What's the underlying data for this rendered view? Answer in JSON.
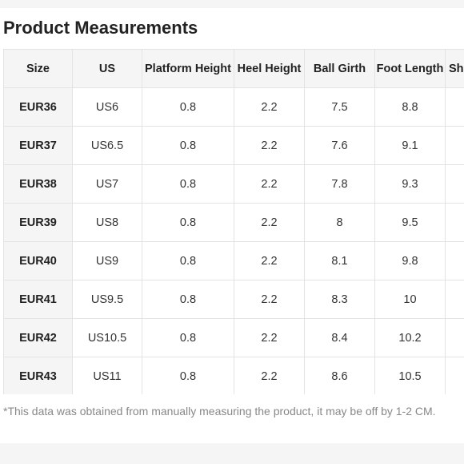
{
  "title": "Product Measurements",
  "table": {
    "headers": [
      "Size",
      "US",
      "Platform Height",
      "Heel Height",
      "Ball Girth",
      "Foot Length",
      "Sh"
    ],
    "rows": [
      [
        "EUR36",
        "US6",
        "0.8",
        "2.2",
        "7.5",
        "8.8",
        ""
      ],
      [
        "EUR37",
        "US6.5",
        "0.8",
        "2.2",
        "7.6",
        "9.1",
        ""
      ],
      [
        "EUR38",
        "US7",
        "0.8",
        "2.2",
        "7.8",
        "9.3",
        ""
      ],
      [
        "EUR39",
        "US8",
        "0.8",
        "2.2",
        "8",
        "9.5",
        ""
      ],
      [
        "EUR40",
        "US9",
        "0.8",
        "2.2",
        "8.1",
        "9.8",
        ""
      ],
      [
        "EUR41",
        "US9.5",
        "0.8",
        "2.2",
        "8.3",
        "10",
        ""
      ],
      [
        "EUR42",
        "US10.5",
        "0.8",
        "2.2",
        "8.4",
        "10.2",
        ""
      ],
      [
        "EUR43",
        "US11",
        "0.8",
        "2.2",
        "8.6",
        "10.5",
        ""
      ]
    ]
  },
  "note": "*This data was obtained from manually measuring the product, it may be off by 1-2 CM."
}
